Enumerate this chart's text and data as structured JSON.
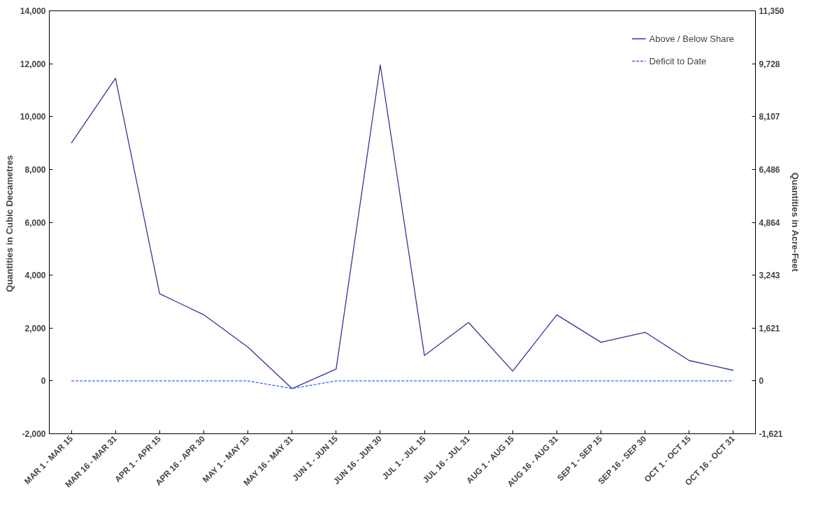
{
  "chart_data": {
    "type": "line",
    "ylabel": "Quantities in  Cubic Decametres",
    "y2label": "Quantities in Acre-Feet",
    "categories": [
      "MAR 1 - MAR 15",
      "MAR 16 - MAR 31",
      "APR 1 - APR 15",
      "APR 16 - APR 30",
      "MAY 1 - MAY 15",
      "MAY 16 - MAY 31",
      "JUN 1 - JUN 15",
      "JUN 16 - JUN 30",
      "JUL 1 - JUL 15",
      "JUL 16 - JUL 31",
      "AUG 1 - AUG 15",
      "AUG 16 - AUG 31",
      "SEP 1 - SEP 15",
      "SEP 16 - SEP 30",
      "OCT 1 - OCT 15",
      "OCT 16 - OCT 31"
    ],
    "series": [
      {
        "name": "Above / Below Share",
        "color": "#333399",
        "line_style": "solid",
        "values": [
          9000,
          11450,
          3300,
          2500,
          1280,
          -290,
          450,
          11950,
          960,
          2210,
          370,
          2500,
          1460,
          1840,
          770,
          400
        ]
      },
      {
        "name": "Deficit to Date",
        "color": "#3366ff",
        "line_style": "dashed",
        "values": [
          0,
          0,
          0,
          0,
          0,
          -290,
          0,
          0,
          0,
          0,
          0,
          0,
          0,
          0,
          0,
          0
        ]
      }
    ],
    "ylim": [
      -2000,
      14000
    ],
    "yticks": [
      {
        "value": -2000,
        "label": "-2,000"
      },
      {
        "value": 0,
        "label": "0"
      },
      {
        "value": 2000,
        "label": "2,000"
      },
      {
        "value": 4000,
        "label": "4,000"
      },
      {
        "value": 6000,
        "label": "6,000"
      },
      {
        "value": 8000,
        "label": "8,000"
      },
      {
        "value": 10000,
        "label": "10,000"
      },
      {
        "value": 12000,
        "label": "12,000"
      },
      {
        "value": 14000,
        "label": "14,000"
      }
    ],
    "y2lim": [
      -1621,
      11350
    ],
    "y2ticks": [
      {
        "value": -1621,
        "label": "-1,621"
      },
      {
        "value": 0,
        "label": "0"
      },
      {
        "value": 1621,
        "label": "1,621"
      },
      {
        "value": 3243,
        "label": "3,243"
      },
      {
        "value": 4864,
        "label": "4,864"
      },
      {
        "value": 6486,
        "label": "6,486"
      },
      {
        "value": 8107,
        "label": "8,107"
      },
      {
        "value": 9728,
        "label": "9,728"
      },
      {
        "value": 11350,
        "label": "11,350"
      }
    ],
    "grid": false,
    "legend": "top right",
    "marker": "none"
  }
}
